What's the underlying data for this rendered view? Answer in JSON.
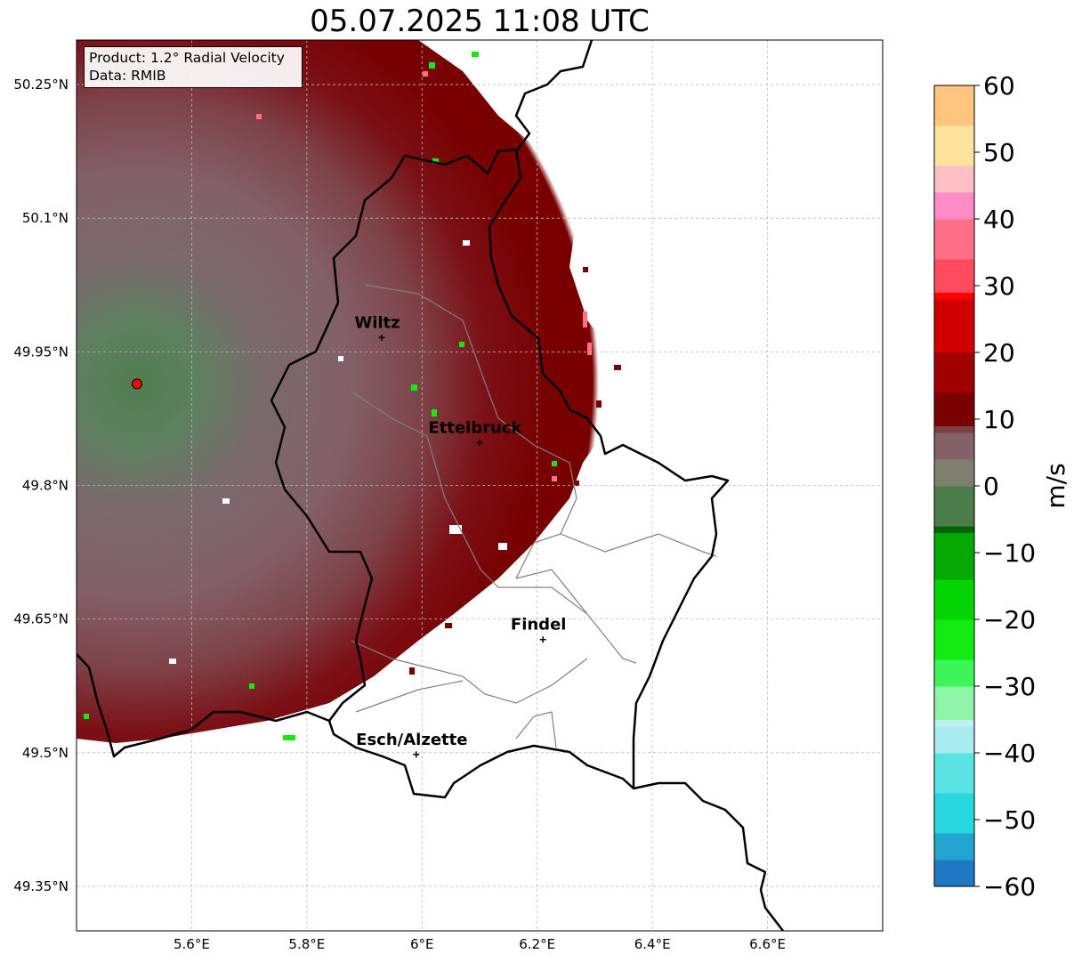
{
  "title": "05.07.2025 11:08 UTC",
  "info": {
    "product": "Product: 1.2° Radial Velocity",
    "source": "Data: RMIB"
  },
  "map": {
    "lon_range": [
      5.4,
      6.8
    ],
    "lat_range": [
      49.3,
      50.3
    ],
    "lat_ticks": [
      {
        "value": 50.25,
        "label": "50.25°N"
      },
      {
        "value": 50.1,
        "label": "50.1°N"
      },
      {
        "value": 49.95,
        "label": "49.95°N"
      },
      {
        "value": 49.8,
        "label": "49.8°N"
      },
      {
        "value": 49.65,
        "label": "49.65°N"
      },
      {
        "value": 49.5,
        "label": "49.5°N"
      },
      {
        "value": 49.35,
        "label": "49.35°N"
      }
    ],
    "lon_ticks": [
      {
        "value": 5.6,
        "label": "5.6°E"
      },
      {
        "value": 5.8,
        "label": "5.8°E"
      },
      {
        "value": 6.0,
        "label": "6°E"
      },
      {
        "value": 6.2,
        "label": "6.2°E"
      },
      {
        "value": 6.4,
        "label": "6.4°E"
      },
      {
        "value": 6.6,
        "label": "6.6°E"
      }
    ],
    "radar_site": {
      "lon": 5.505,
      "lat": 49.914
    },
    "cities": [
      {
        "name": "Wiltz",
        "lon": 5.93,
        "lat": 49.966
      },
      {
        "name": "Ettelbruck",
        "lon": 6.1,
        "lat": 49.848
      },
      {
        "name": "Findel",
        "lon": 6.21,
        "lat": 49.627
      },
      {
        "name": "Esch/Alzette",
        "lon": 5.99,
        "lat": 49.498
      }
    ],
    "colors": {
      "border": "#000000",
      "canton_lines": "#808080",
      "grid": "#bbbbbb",
      "radar_marker": "#ff0000"
    }
  },
  "colorbar": {
    "unit": "m/s",
    "range": [
      -60,
      60
    ],
    "ticks": [
      {
        "value": 60,
        "label": "60"
      },
      {
        "value": 50,
        "label": "50"
      },
      {
        "value": 40,
        "label": "40"
      },
      {
        "value": 30,
        "label": "30"
      },
      {
        "value": 20,
        "label": "20"
      },
      {
        "value": 10,
        "label": "10"
      },
      {
        "value": 0,
        "label": "0"
      },
      {
        "value": -10,
        "label": "−10"
      },
      {
        "value": -20,
        "label": "−20"
      },
      {
        "value": -30,
        "label": "−30"
      },
      {
        "value": -40,
        "label": "−40"
      },
      {
        "value": -50,
        "label": "−50"
      },
      {
        "value": -60,
        "label": "−60"
      }
    ],
    "color_stops": [
      {
        "value": -60,
        "color": "#1f78c4"
      },
      {
        "value": -56,
        "color": "#22a4d0"
      },
      {
        "value": -52,
        "color": "#28d6dd"
      },
      {
        "value": -46,
        "color": "#5ae3e3"
      },
      {
        "value": -40,
        "color": "#a8ecef"
      },
      {
        "value": -36,
        "color": "#c0f0f0"
      },
      {
        "value": -35,
        "color": "#8ef5a8"
      },
      {
        "value": -30,
        "color": "#3ef558"
      },
      {
        "value": -26,
        "color": "#12ea12"
      },
      {
        "value": -20,
        "color": "#04d404"
      },
      {
        "value": -14,
        "color": "#03a803"
      },
      {
        "value": -7,
        "color": "#006400"
      },
      {
        "value": -6,
        "color": "#4b7d4b"
      },
      {
        "value": 0,
        "color": "#7f7f6f"
      },
      {
        "value": 4,
        "color": "#846069"
      },
      {
        "value": 8,
        "color": "#7d3e42"
      },
      {
        "value": 9,
        "color": "#7a0000"
      },
      {
        "value": 14,
        "color": "#a00000"
      },
      {
        "value": 20,
        "color": "#d00000"
      },
      {
        "value": 28,
        "color": "#ff0000"
      },
      {
        "value": 29,
        "color": "#ff4a5e"
      },
      {
        "value": 34,
        "color": "#ff6f86"
      },
      {
        "value": 40,
        "color": "#ff8cc6"
      },
      {
        "value": 44,
        "color": "#ffbfc4"
      },
      {
        "value": 48,
        "color": "#ffe49e"
      },
      {
        "value": 54,
        "color": "#ffc47e"
      },
      {
        "value": 60,
        "color": "#ff9a56"
      }
    ]
  }
}
